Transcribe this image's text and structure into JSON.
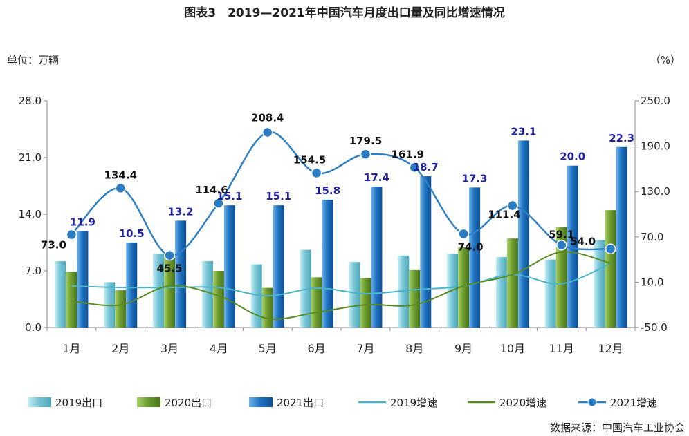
{
  "title": "图表3　2019—2021年中国汽车月度出口量及同比增速情况",
  "unit_left": "单位：万辆",
  "unit_right": "（%）",
  "source": "数据来源：中国汽车工业协会",
  "colors": {
    "bar2019": "#79c6d6",
    "bar2020": "#6e9e2f",
    "bar2021": "#1f74c2",
    "line2019": "#4bb3c8",
    "line2020": "#5a8a22",
    "line2021": "#2f7fc4",
    "label2021": "#1f1fa8"
  },
  "chart_data": {
    "type": "bar",
    "categories": [
      "1月",
      "2月",
      "3月",
      "4月",
      "5月",
      "6月",
      "7月",
      "8月",
      "9月",
      "10月",
      "11月",
      "12月"
    ],
    "ylim": [
      0,
      28
    ],
    "yticks": [
      "0.0",
      "7.0",
      "14.0",
      "21.0",
      "28.0"
    ],
    "y2lim": [
      -50,
      250
    ],
    "y2ticks": [
      "-50.0",
      "10.0",
      "70.0",
      "130.0",
      "190.0",
      "250.0"
    ],
    "bar_series": [
      {
        "name": "2019出口",
        "values": [
          8.2,
          5.6,
          9.1,
          8.2,
          7.8,
          9.6,
          8.1,
          8.9,
          9.1,
          8.7,
          8.4,
          10.8
        ]
      },
      {
        "name": "2020出口",
        "values": [
          6.9,
          4.6,
          8.6,
          7.0,
          4.9,
          6.2,
          6.1,
          7.1,
          9.9,
          11.0,
          12.4,
          14.5
        ]
      },
      {
        "name": "2021出口",
        "values": [
          11.9,
          10.5,
          13.2,
          15.1,
          15.1,
          15.8,
          17.4,
          18.7,
          17.3,
          23.1,
          20.0,
          22.3
        ]
      }
    ],
    "bar_labels_2021": [
      "11.9",
      "10.5",
      "13.2",
      "15.1",
      "15.1",
      "15.8",
      "17.4",
      "18.7",
      "17.3",
      "23.1",
      "20.0",
      "22.3"
    ],
    "line_series": [
      {
        "name": "2019增速",
        "values": [
          5,
          3,
          3,
          3,
          -8,
          2,
          -5,
          0,
          5,
          20,
          8,
          35
        ]
      },
      {
        "name": "2020增速",
        "values": [
          -15,
          -20,
          5,
          -8,
          -38,
          -30,
          -20,
          -20,
          5,
          20,
          50,
          35
        ]
      },
      {
        "name": "2021增速",
        "values": [
          73.0,
          134.4,
          45.5,
          114.6,
          208.4,
          154.5,
          179.5,
          161.9,
          74.0,
          111.4,
          59.1,
          54.0
        ]
      }
    ],
    "line_labels_2021": [
      "73.0",
      "134.4",
      "45.5",
      "114.6",
      "208.4",
      "154.5",
      "179.5",
      "161.9",
      "74.0",
      "111.4",
      "59.1",
      "54.0"
    ],
    "legend": [
      "2019出口",
      "2020出口",
      "2021出口",
      "2019增速",
      "2020增速",
      "2021增速"
    ],
    "legend_position": "bottom"
  }
}
